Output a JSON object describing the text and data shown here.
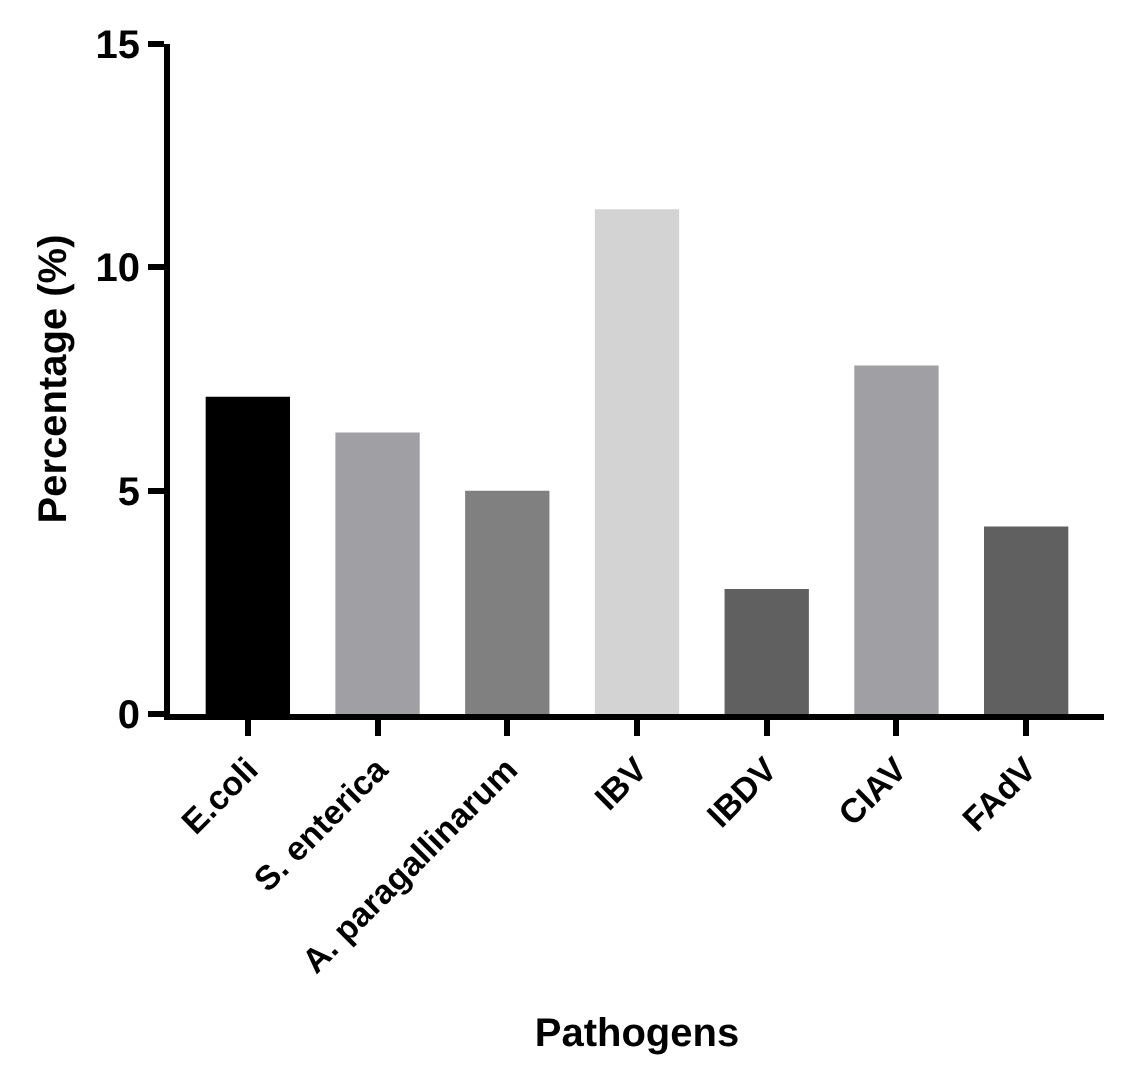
{
  "chart_data": {
    "type": "bar",
    "xlabel": "Pathogens",
    "ylabel": "Percentage (%)",
    "categories": [
      "E.coli",
      "S. enterica",
      "A. paragallinarum",
      "IBV",
      "IBDV",
      "CIAV",
      "FAdV"
    ],
    "values": [
      7.1,
      6.3,
      5.0,
      11.3,
      2.8,
      7.8,
      4.2
    ],
    "colors": [
      "#000000",
      "#a0a0a4",
      "#808080",
      "#d3d3d3",
      "#606060",
      "#a0a0a4",
      "#606060"
    ],
    "ylim": [
      0,
      15
    ],
    "yticks": [
      0,
      5,
      10,
      15
    ],
    "grid": false
  }
}
